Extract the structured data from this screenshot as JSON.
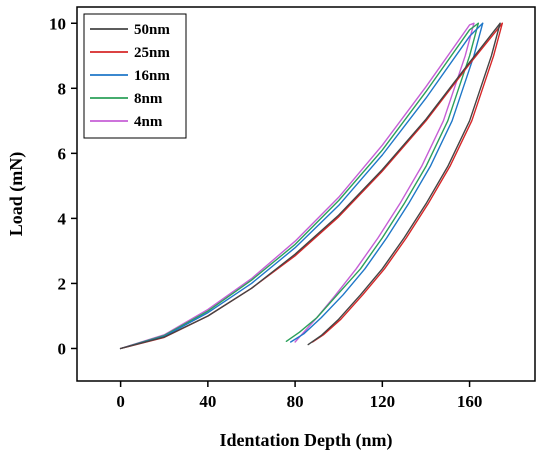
{
  "chart_data": {
    "type": "line",
    "xlabel": "Identation Depth (nm)",
    "ylabel": "Load (mN)",
    "xlim": [
      -20,
      190
    ],
    "ylim": [
      -1,
      10.5
    ],
    "xticks": [
      0,
      40,
      80,
      120,
      160
    ],
    "yticks": [
      0,
      2,
      4,
      6,
      8,
      10
    ],
    "grid": false,
    "legend": "top-left",
    "series": [
      {
        "name": "50nm",
        "color": "#444444",
        "loading": {
          "x": [
            0,
            20,
            40,
            60,
            80,
            100,
            120,
            140,
            160,
            174
          ],
          "y": [
            0,
            0.35,
            1.0,
            1.85,
            2.9,
            4.1,
            5.5,
            7.05,
            8.8,
            10
          ]
        },
        "unloading": {
          "x": [
            174,
            170,
            160,
            150,
            140,
            130,
            120,
            110,
            100,
            92,
            86
          ],
          "y": [
            10,
            9.0,
            7.0,
            5.6,
            4.45,
            3.4,
            2.45,
            1.65,
            0.9,
            0.4,
            0.12
          ]
        }
      },
      {
        "name": "25nm",
        "color": "#d62728",
        "loading": {
          "x": [
            0,
            20,
            40,
            60,
            80,
            100,
            120,
            140,
            160,
            175
          ],
          "y": [
            0,
            0.34,
            1.0,
            1.85,
            2.85,
            4.05,
            5.45,
            7.0,
            8.75,
            10
          ]
        },
        "unloading": {
          "x": [
            175,
            171,
            161,
            151,
            141,
            131,
            121,
            111,
            101,
            93,
            88
          ],
          "y": [
            10,
            9.0,
            7.0,
            5.6,
            4.45,
            3.4,
            2.45,
            1.65,
            0.9,
            0.42,
            0.2
          ]
        }
      },
      {
        "name": "16nm",
        "color": "#1f77c8",
        "loading": {
          "x": [
            0,
            20,
            40,
            60,
            80,
            100,
            120,
            140,
            160,
            166
          ],
          "y": [
            0,
            0.37,
            1.1,
            2.0,
            3.1,
            4.4,
            5.95,
            7.7,
            9.6,
            10
          ]
        },
        "unloading": {
          "x": [
            166,
            162,
            152,
            142,
            132,
            122,
            112,
            102,
            92,
            84,
            78
          ],
          "y": [
            10,
            9.0,
            7.0,
            5.6,
            4.45,
            3.4,
            2.45,
            1.65,
            0.95,
            0.45,
            0.2
          ]
        }
      },
      {
        "name": "8nm",
        "color": "#2ca05a",
        "loading": {
          "x": [
            0,
            20,
            40,
            60,
            80,
            100,
            120,
            140,
            160,
            164
          ],
          "y": [
            0,
            0.4,
            1.15,
            2.1,
            3.2,
            4.55,
            6.1,
            7.9,
            9.8,
            10
          ]
        },
        "unloading": {
          "x": [
            164,
            160,
            150,
            140,
            130,
            120,
            110,
            100,
            90,
            82,
            76
          ],
          "y": [
            10,
            9.0,
            7.0,
            5.6,
            4.45,
            3.4,
            2.45,
            1.7,
            0.95,
            0.5,
            0.22
          ]
        }
      },
      {
        "name": "4nm",
        "color": "#c65fd6",
        "loading": {
          "x": [
            0,
            20,
            40,
            60,
            80,
            100,
            120,
            140,
            160,
            162
          ],
          "y": [
            0,
            0.42,
            1.2,
            2.15,
            3.3,
            4.65,
            6.25,
            8.05,
            9.95,
            10
          ]
        },
        "unloading": {
          "x": [
            162,
            158,
            148,
            138,
            128,
            118,
            108,
            98,
            90,
            84,
            80
          ],
          "y": [
            10,
            9.0,
            7.0,
            5.6,
            4.45,
            3.4,
            2.45,
            1.6,
            0.95,
            0.5,
            0.2
          ]
        }
      }
    ]
  }
}
